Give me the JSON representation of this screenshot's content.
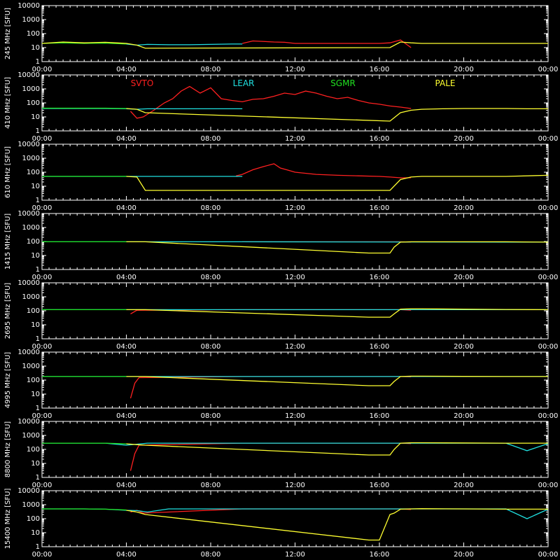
{
  "chart_data": {
    "type": "line",
    "x_ticks": [
      "00:00",
      "04:00",
      "08:00",
      "12:00",
      "16:00",
      "20:00",
      "00:00"
    ],
    "y_tick_labels": [
      "10000",
      "1000",
      "100",
      "10",
      "1"
    ],
    "ylim": [
      1,
      10000
    ],
    "y_scale": "log",
    "legend": [
      {
        "name": "SVTO",
        "color": "#ff2020"
      },
      {
        "name": "LEAR",
        "color": "#20e0e0"
      },
      {
        "name": "SGMR",
        "color": "#20e020"
      },
      {
        "name": "PALE",
        "color": "#ffff30"
      }
    ],
    "panels": [
      {
        "ylabel": "245 MHz [SFU]",
        "series": [
          {
            "name": "SVTO",
            "color": "#ff2020",
            "x": [
              9.5,
              10,
              11,
              11.5,
              12,
              13,
              14,
              15,
              16,
              16.5,
              17,
              17.5
            ],
            "y": [
              20,
              30,
              25,
              24,
              20,
              20,
              20,
              20,
              20,
              22,
              35,
              10
            ]
          },
          {
            "name": "LEAR",
            "color": "#20e0e0",
            "x": [
              4,
              4.5,
              5,
              6,
              7,
              8,
              9,
              9.5
            ],
            "y": [
              18,
              15,
              17,
              16,
              16,
              17,
              18,
              18
            ]
          },
          {
            "name": "SGMR",
            "color": "#20e020",
            "x": [
              0,
              1,
              2,
              3,
              4
            ],
            "y": [
              20,
              22,
              20,
              21,
              18
            ]
          },
          {
            "name": "PALE",
            "color": "#ffff30",
            "x": [
              0,
              1,
              2,
              3,
              3.5,
              4,
              4.5,
              4.9,
              16.5,
              17,
              17.5,
              18,
              20,
              22,
              24
            ],
            "y": [
              20,
              25,
              22,
              24,
              22,
              20,
              15,
              9,
              10,
              25,
              22,
              20,
              20,
              20,
              20
            ]
          }
        ]
      },
      {
        "ylabel": "410 MHz [SFU]",
        "series": [
          {
            "name": "SVTO",
            "color": "#ff2020",
            "x": [
              4.2,
              4.5,
              4.8,
              5.3,
              5.8,
              6.2,
              6.6,
              7,
              7.5,
              8,
              8.5,
              9,
              9.5,
              10,
              10.5,
              11,
              11.5,
              12,
              12.5,
              13,
              13.5,
              14,
              14.5,
              15,
              15.5,
              16,
              16.5,
              17,
              17.5
            ],
            "y": [
              25,
              8,
              10,
              30,
              100,
              200,
              700,
              1500,
              500,
              1200,
              200,
              150,
              120,
              180,
              200,
              300,
              500,
              400,
              700,
              500,
              300,
              200,
              250,
              150,
              100,
              80,
              60,
              50,
              40
            ]
          },
          {
            "name": "LEAR",
            "color": "#20e0e0",
            "x": [
              0,
              1,
              2,
              3,
              4,
              4.5,
              5,
              6,
              7,
              8,
              9,
              9.5
            ],
            "y": [
              40,
              40,
              40,
              40,
              38,
              35,
              38,
              38,
              38,
              38,
              38,
              38
            ]
          },
          {
            "name": "SGMR",
            "color": "#20e020",
            "x": [
              0,
              1,
              2,
              3,
              4
            ],
            "y": [
              42,
              42,
              42,
              42,
              40
            ]
          },
          {
            "name": "PALE",
            "color": "#ffff30",
            "x": [
              4,
              4.5,
              4.9,
              16.5,
              17,
              17.5,
              18,
              19,
              20,
              21,
              22,
              23,
              24
            ],
            "y": [
              40,
              35,
              20,
              5,
              20,
              30,
              35,
              38,
              40,
              40,
              40,
              38,
              38
            ]
          }
        ]
      },
      {
        "ylabel": "610 MHz [SFU]",
        "series": [
          {
            "name": "SVTO",
            "color": "#ff2020",
            "x": [
              9.2,
              9.5,
              10,
              10.5,
              11,
              11.3,
              11.6,
              12,
              13,
              14,
              15,
              16,
              16.5,
              17,
              17.5
            ],
            "y": [
              55,
              70,
              150,
              250,
              400,
              200,
              150,
              100,
              70,
              60,
              55,
              50,
              45,
              40,
              40
            ]
          },
          {
            "name": "LEAR",
            "color": "#20e0e0",
            "x": [
              0,
              1,
              2,
              3,
              4,
              5,
              6,
              7,
              8,
              9,
              9.5
            ],
            "y": [
              50,
              50,
              50,
              50,
              50,
              50,
              50,
              50,
              50,
              50,
              50
            ]
          },
          {
            "name": "SGMR",
            "color": "#20e020",
            "x": [
              0,
              1,
              2,
              3,
              4
            ],
            "y": [
              50,
              50,
              50,
              50,
              50
            ]
          },
          {
            "name": "PALE",
            "color": "#ffff30",
            "x": [
              4,
              4.5,
              4.9,
              16.5,
              17,
              17.5,
              18,
              20,
              22,
              24
            ],
            "y": [
              50,
              45,
              5,
              5,
              30,
              45,
              50,
              50,
              50,
              60
            ]
          }
        ]
      },
      {
        "ylabel": "1415 MHz [SFU]",
        "series": [
          {
            "name": "SVTO",
            "color": "#ff2020",
            "x": [
              9.5,
              10,
              11,
              11.5,
              12,
              13,
              14,
              15,
              16,
              16.5,
              17,
              17.5
            ],
            "y": [
              95,
              95,
              95,
              95,
              95,
              95,
              95,
              95,
              95,
              95,
              95,
              90
            ]
          },
          {
            "name": "LEAR",
            "color": "#20e0e0",
            "x": [
              0,
              1,
              2,
              3,
              4,
              5,
              6,
              7,
              8,
              9,
              9.5,
              22,
              23,
              24
            ],
            "y": [
              95,
              95,
              95,
              95,
              95,
              95,
              95,
              95,
              95,
              95,
              95,
              90,
              90,
              90
            ]
          },
          {
            "name": "SGMR",
            "color": "#20e020",
            "x": [
              0,
              1,
              2,
              3,
              4
            ],
            "y": [
              95,
              95,
              95,
              95,
              95
            ]
          },
          {
            "name": "PALE",
            "color": "#ffff30",
            "x": [
              4,
              4.5,
              4.9,
              15.5,
              16,
              16.5,
              16.7,
              17,
              17.5,
              18,
              20,
              22,
              24
            ],
            "y": [
              95,
              95,
              95,
              15,
              15,
              15,
              40,
              90,
              95,
              95,
              95,
              95,
              90
            ]
          }
        ]
      },
      {
        "ylabel": "2695 MHz [SFU]",
        "series": [
          {
            "name": "SVTO",
            "color": "#ff2020",
            "x": [
              4.2,
              4.5,
              9.5,
              10,
              11,
              11.5,
              12,
              13,
              14,
              15,
              16,
              16.5,
              17,
              17.5
            ],
            "y": [
              60,
              110,
              120,
              120,
              120,
              120,
              120,
              120,
              120,
              120,
              120,
              120,
              120,
              110
            ]
          },
          {
            "name": "LEAR",
            "color": "#20e0e0",
            "x": [
              0,
              1,
              2,
              3,
              4,
              5,
              6,
              7,
              8,
              9,
              9.5,
              22,
              23,
              24
            ],
            "y": [
              120,
              120,
              120,
              120,
              120,
              120,
              120,
              120,
              120,
              120,
              120,
              120,
              120,
              120
            ]
          },
          {
            "name": "SGMR",
            "color": "#20e020",
            "x": [
              0,
              1,
              2,
              3,
              4
            ],
            "y": [
              120,
              120,
              120,
              120,
              120
            ]
          },
          {
            "name": "PALE",
            "color": "#ffff30",
            "x": [
              4,
              4.5,
              4.9,
              15.5,
              16,
              16.5,
              16.7,
              17,
              17.5,
              18,
              20,
              22,
              24
            ],
            "y": [
              120,
              120,
              120,
              35,
              35,
              35,
              60,
              130,
              140,
              140,
              130,
              125,
              120
            ]
          }
        ]
      },
      {
        "ylabel": "4995 MHz [SFU]",
        "series": [
          {
            "name": "SVTO",
            "color": "#ff2020",
            "x": [
              4.2,
              4.4,
              4.6,
              9.5,
              10,
              11,
              11.5,
              12,
              13,
              14,
              15,
              16,
              16.5,
              17,
              17.5
            ],
            "y": [
              5,
              60,
              150,
              180,
              180,
              180,
              180,
              180,
              180,
              180,
              180,
              180,
              180,
              180,
              170
            ]
          },
          {
            "name": "LEAR",
            "color": "#20e0e0",
            "x": [
              0,
              1,
              2,
              3,
              4,
              5,
              6,
              7,
              8,
              9,
              9.5,
              22,
              23,
              24
            ],
            "y": [
              180,
              180,
              180,
              180,
              180,
              180,
              180,
              180,
              180,
              180,
              180,
              180,
              180,
              180
            ]
          },
          {
            "name": "SGMR",
            "color": "#20e020",
            "x": [
              0,
              1,
              2,
              3,
              4
            ],
            "y": [
              180,
              180,
              180,
              180,
              180
            ]
          },
          {
            "name": "PALE",
            "color": "#ffff30",
            "x": [
              4,
              4.5,
              4.9,
              15.5,
              16,
              16.5,
              16.7,
              17,
              17.5,
              18,
              20,
              22,
              24
            ],
            "y": [
              180,
              180,
              180,
              40,
              40,
              40,
              80,
              180,
              190,
              190,
              185,
              180,
              180
            ]
          }
        ]
      },
      {
        "ylabel": "8800 MHz [SFU]",
        "series": [
          {
            "name": "SVTO",
            "color": "#ff2020",
            "x": [
              4.2,
              4.4,
              4.6,
              9.5,
              10,
              11,
              11.5,
              12,
              13,
              14,
              15,
              16,
              16.5,
              17,
              17.5
            ],
            "y": [
              3,
              50,
              200,
              280,
              280,
              280,
              280,
              280,
              280,
              280,
              280,
              280,
              280,
              280,
              260
            ]
          },
          {
            "name": "LEAR",
            "color": "#20e0e0",
            "x": [
              0,
              1,
              2,
              3,
              4,
              5,
              6,
              7,
              8,
              9,
              9.5,
              22,
              23,
              24
            ],
            "y": [
              280,
              280,
              280,
              280,
              200,
              280,
              280,
              280,
              280,
              280,
              280,
              280,
              80,
              260
            ]
          },
          {
            "name": "SGMR",
            "color": "#20e020",
            "x": [
              0,
              1,
              2,
              3,
              4
            ],
            "y": [
              280,
              280,
              280,
              280,
              250
            ]
          },
          {
            "name": "PALE",
            "color": "#ffff30",
            "x": [
              4,
              4.5,
              4.9,
              15.5,
              16,
              16.5,
              16.7,
              17,
              17.5,
              18,
              20,
              22,
              24
            ],
            "y": [
              250,
              220,
              200,
              40,
              40,
              40,
              100,
              280,
              300,
              300,
              290,
              280,
              280
            ]
          }
        ]
      },
      {
        "ylabel": "15400 MHz [SFU]",
        "series": [
          {
            "name": "SVTO",
            "color": "#ff2020",
            "x": [
              4.2,
              4.5,
              4.8,
              9.5,
              10,
              11,
              11.5,
              12,
              13,
              14,
              15,
              16,
              16.5,
              17,
              17.5
            ],
            "y": [
              300,
              400,
              250,
              500,
              500,
              500,
              500,
              500,
              500,
              500,
              500,
              500,
              500,
              500,
              450
            ]
          },
          {
            "name": "LEAR",
            "color": "#20e0e0",
            "x": [
              0,
              1,
              2,
              3,
              4,
              4.5,
              5,
              6,
              7,
              8,
              9,
              9.5,
              22,
              23,
              24
            ],
            "y": [
              500,
              500,
              500,
              480,
              400,
              380,
              300,
              500,
              500,
              500,
              500,
              500,
              500,
              100,
              480
            ]
          },
          {
            "name": "SGMR",
            "color": "#20e020",
            "x": [
              0,
              1,
              2,
              3,
              4
            ],
            "y": [
              500,
              500,
              500,
              480,
              420
            ]
          },
          {
            "name": "PALE",
            "color": "#ffff30",
            "x": [
              4,
              4.5,
              4.9,
              15.5,
              16,
              16.5,
              16.7,
              17,
              17.5,
              18,
              20,
              22,
              24
            ],
            "y": [
              400,
              300,
              200,
              3,
              3,
              200,
              250,
              480,
              500,
              520,
              500,
              480,
              480
            ]
          }
        ]
      }
    ]
  }
}
